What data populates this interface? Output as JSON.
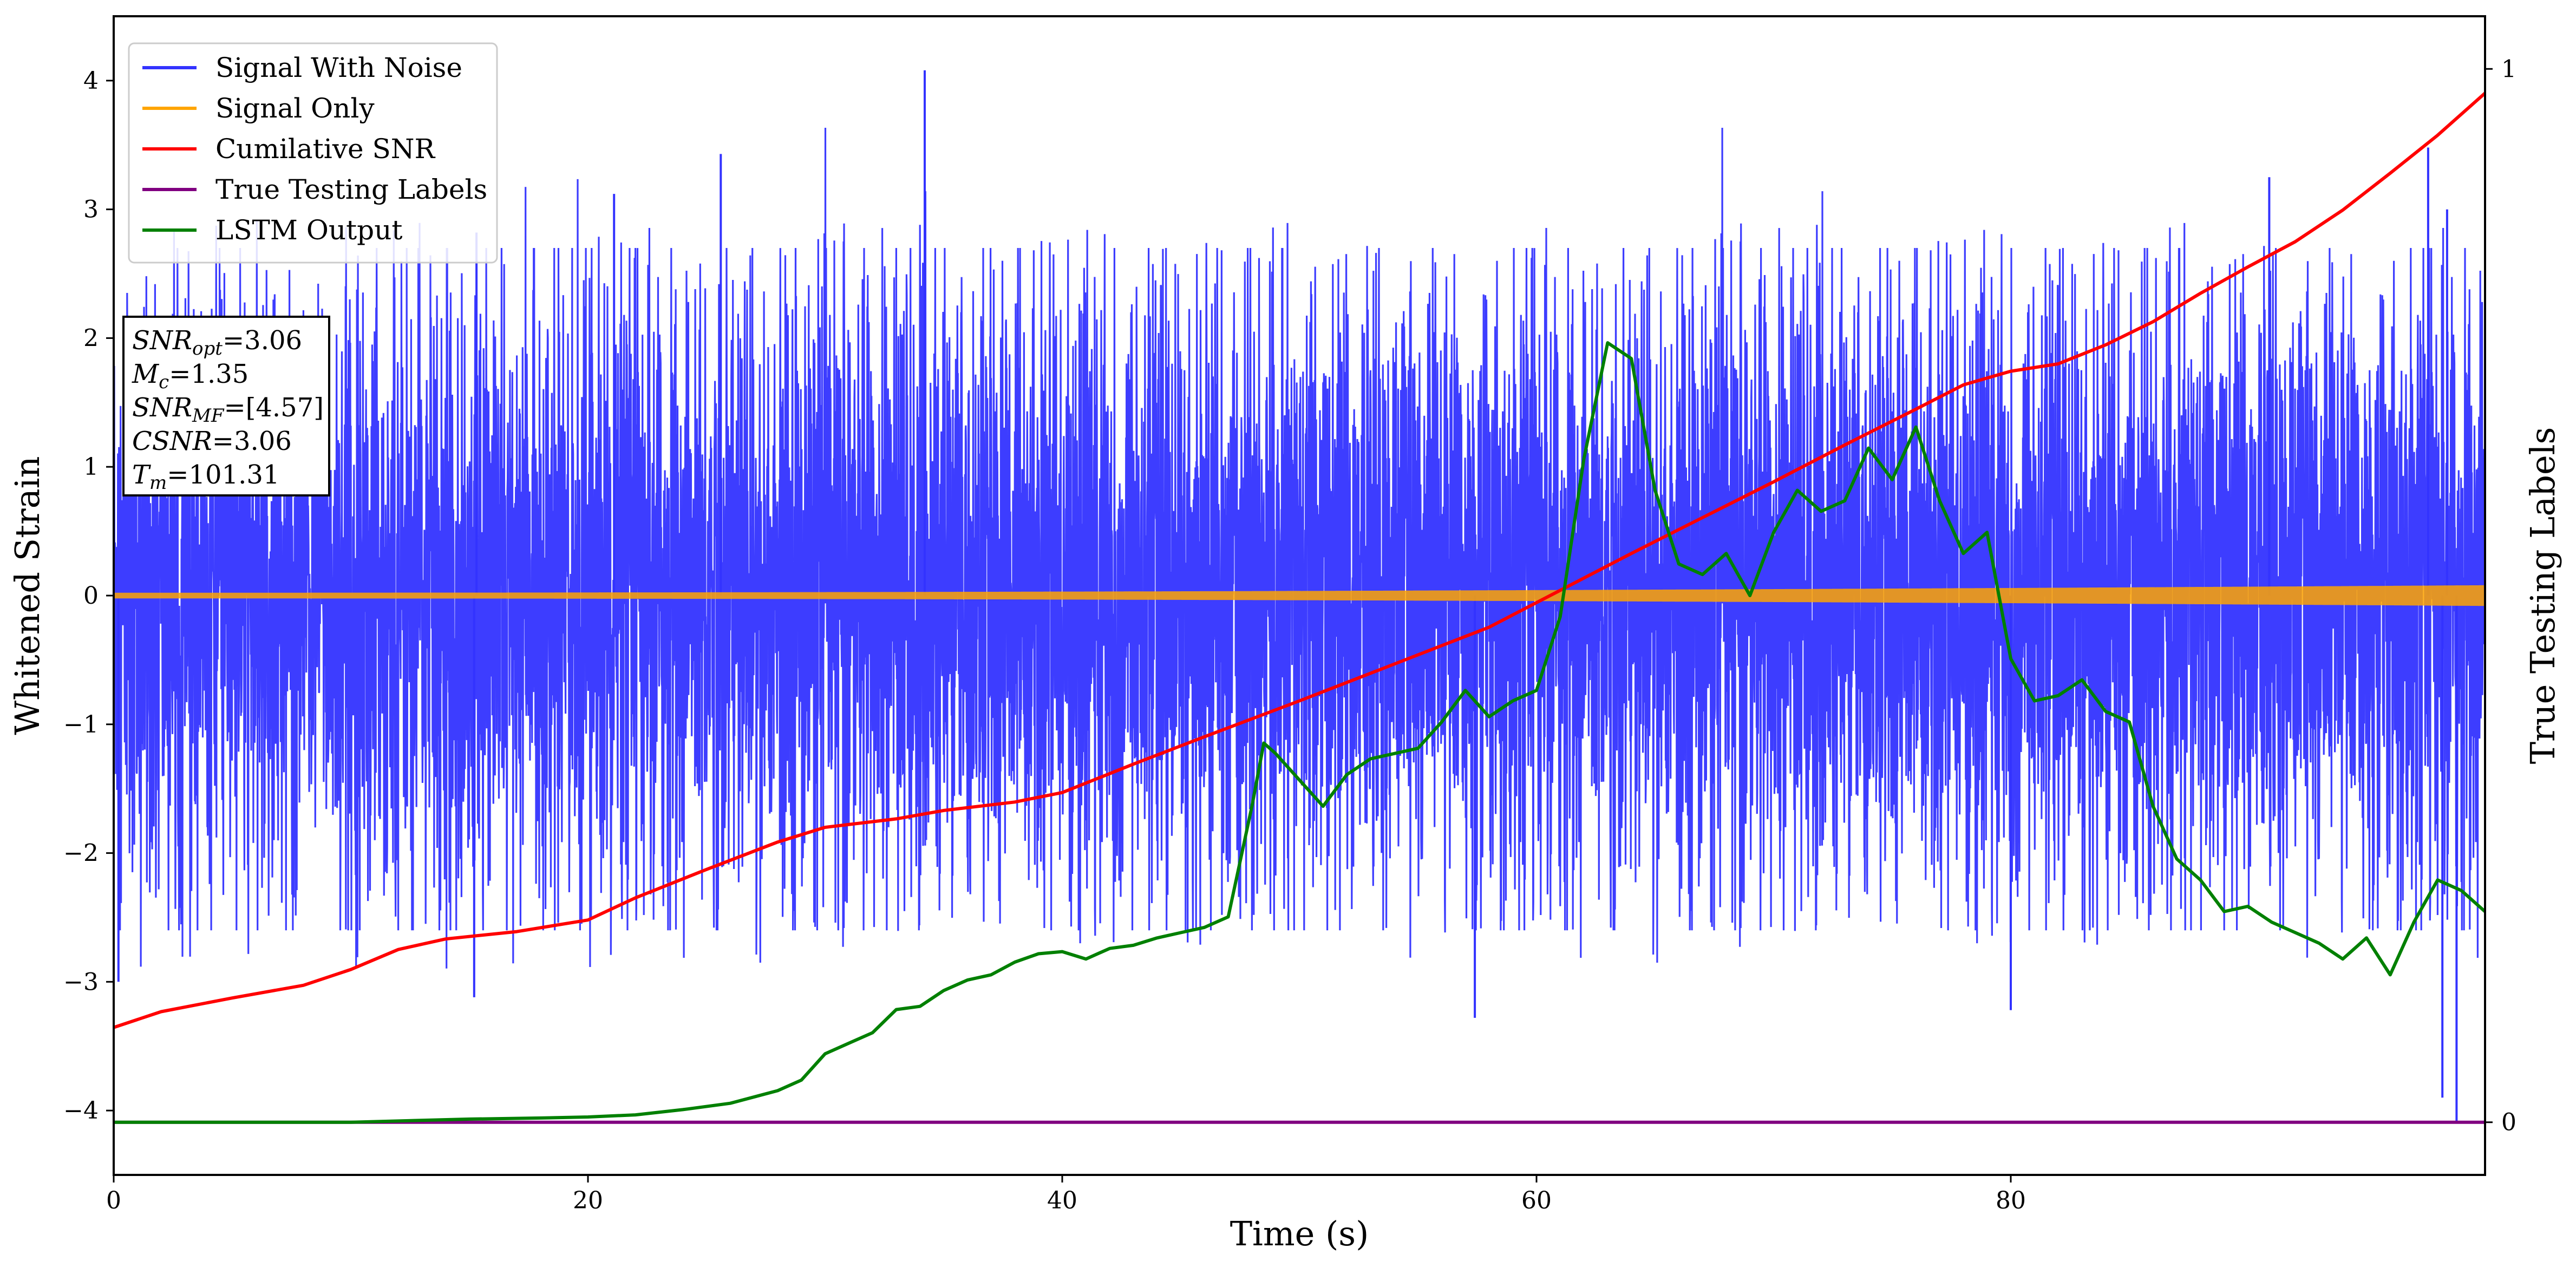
{
  "chart_data": {
    "type": "line",
    "xlabel": "Time (s)",
    "ylabel": "Whitened Strain",
    "y2label": "True Testing Labels",
    "xlim": [
      0,
      100
    ],
    "ylim": [
      -4.5,
      4.5
    ],
    "y2lim": [
      -0.05,
      1.05
    ],
    "xticks": [
      0,
      20,
      40,
      60,
      80
    ],
    "yticks": [
      -4,
      -3,
      -2,
      -1,
      0,
      1,
      2,
      3,
      4
    ],
    "y2ticks": [
      0,
      1
    ],
    "legend_position": "upper-left",
    "series": [
      {
        "name": "Signal With Noise",
        "axis": "left",
        "color": "#3333ff",
        "description_type": "noise",
        "envelope": [
          -2.6,
          2.7
        ],
        "spike_peaks": [
          {
            "x": 34.2,
            "y": 4.08
          },
          {
            "x": 97.6,
            "y": 3.48
          },
          {
            "x": 25.6,
            "y": 3.43
          },
          {
            "x": 90.9,
            "y": 3.25
          },
          {
            "x": 21.1,
            "y": 3.12
          },
          {
            "x": 98.4,
            "y": 3.0
          },
          {
            "x": 15.3,
            "y": 2.82
          },
          {
            "x": 98.2,
            "y": -3.9
          },
          {
            "x": 98.8,
            "y": -4.1
          },
          {
            "x": 80.0,
            "y": -3.22
          },
          {
            "x": 57.4,
            "y": -3.28
          },
          {
            "x": 15.2,
            "y": -3.12
          },
          {
            "x": 0.2,
            "y": -3.0
          }
        ]
      },
      {
        "name": "Signal Only",
        "axis": "left",
        "color": "#ffa500",
        "description_type": "chirp",
        "amplitude_start": 0.02,
        "amplitude_end": 0.08
      },
      {
        "name": "Cumilative SNR",
        "axis": "right",
        "color": "#ff0000",
        "x": [
          0,
          2,
          5,
          8,
          10,
          12,
          14,
          17,
          20,
          22,
          25,
          28,
          30,
          33,
          35,
          38,
          40,
          43,
          46,
          50,
          54,
          58,
          61,
          64,
          67,
          70,
          73,
          76,
          78,
          80,
          82,
          84,
          86,
          88,
          90,
          92,
          94,
          96,
          98,
          100
        ],
        "y": [
          0.09,
          0.105,
          0.118,
          0.13,
          0.145,
          0.164,
          0.174,
          0.181,
          0.192,
          0.213,
          0.24,
          0.266,
          0.28,
          0.288,
          0.296,
          0.304,
          0.313,
          0.34,
          0.366,
          0.4,
          0.435,
          0.47,
          0.505,
          0.54,
          0.574,
          0.608,
          0.643,
          0.677,
          0.7,
          0.713,
          0.72,
          0.738,
          0.76,
          0.787,
          0.812,
          0.836,
          0.866,
          0.901,
          0.937,
          0.977
        ]
      },
      {
        "name": "True Testing Labels",
        "axis": "right",
        "color": "#800080",
        "x": [
          0,
          100
        ],
        "y": [
          0,
          0
        ]
      },
      {
        "name": "LSTM Output",
        "axis": "right",
        "color": "#008000",
        "x": [
          0,
          5,
          10,
          15,
          18,
          20,
          22,
          24,
          26,
          28,
          29,
          30,
          31,
          32,
          33,
          34,
          35,
          36,
          37,
          38,
          39,
          40,
          41,
          42,
          43,
          44,
          45,
          46,
          47,
          48,
          48.5,
          49,
          50,
          51,
          52,
          53,
          54,
          55,
          56,
          57,
          58,
          59,
          60,
          61,
          62,
          63,
          64,
          65,
          66,
          67,
          68,
          69,
          70,
          71,
          72,
          73,
          74,
          75,
          76,
          77,
          78,
          79,
          80,
          81,
          82,
          83,
          84,
          85,
          86,
          87,
          88,
          89,
          90,
          91,
          92,
          93,
          94,
          95,
          96,
          97,
          98,
          99,
          100
        ],
        "y": [
          0.0,
          0.0,
          0.0,
          0.003,
          0.004,
          0.005,
          0.007,
          0.012,
          0.018,
          0.03,
          0.04,
          0.065,
          0.075,
          0.085,
          0.107,
          0.11,
          0.125,
          0.135,
          0.14,
          0.152,
          0.16,
          0.162,
          0.155,
          0.165,
          0.168,
          0.175,
          0.18,
          0.185,
          0.195,
          0.3,
          0.36,
          0.35,
          0.325,
          0.3,
          0.33,
          0.345,
          0.35,
          0.355,
          0.38,
          0.41,
          0.385,
          0.4,
          0.41,
          0.48,
          0.63,
          0.74,
          0.725,
          0.6,
          0.53,
          0.52,
          0.54,
          0.5,
          0.56,
          0.6,
          0.58,
          0.59,
          0.64,
          0.61,
          0.66,
          0.59,
          0.54,
          0.56,
          0.44,
          0.4,
          0.405,
          0.42,
          0.39,
          0.38,
          0.3,
          0.25,
          0.23,
          0.2,
          0.205,
          0.19,
          0.18,
          0.17,
          0.155,
          0.175,
          0.14,
          0.19,
          0.23,
          0.22,
          0.2
        ]
      }
    ],
    "annotation": {
      "lines": [
        {
          "base": "SNR",
          "sub": "opt",
          "value": "=3.06"
        },
        {
          "base": "M",
          "sub": "c",
          "value": "=1.35"
        },
        {
          "base": "SNR",
          "sub": "MF",
          "value": "=[4.57]"
        },
        {
          "base": "CSNR",
          "sub": "",
          "value": "=3.06"
        },
        {
          "base": "T",
          "sub": "m",
          "value": "=101.31"
        }
      ]
    }
  }
}
